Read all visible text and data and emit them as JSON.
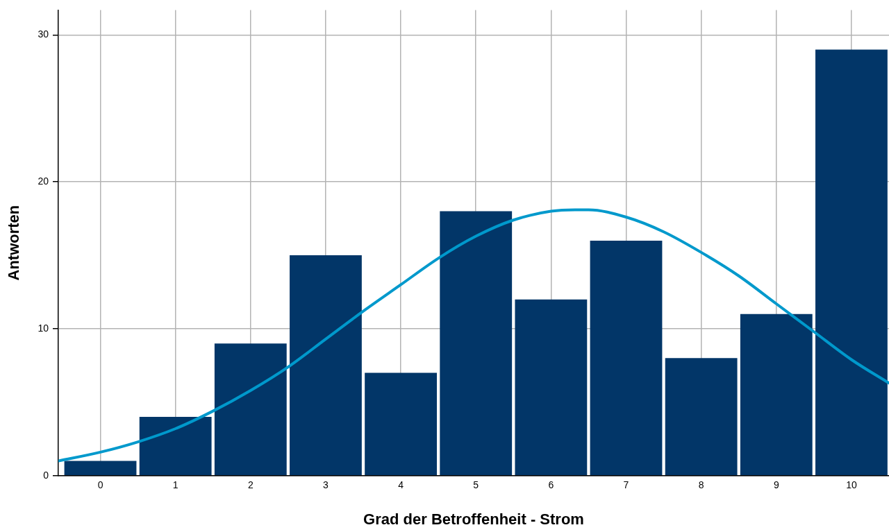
{
  "chart_data": {
    "type": "histogram",
    "xlabel": "Grad der Betroffenheit - Strom",
    "ylabel": "Antworten",
    "bins": [
      -0.5,
      0.5,
      1.5,
      2.5,
      3.5,
      4.5,
      5.5,
      6.5,
      7.5,
      8.5,
      9.5,
      10.5
    ],
    "values": [
      1,
      4,
      9,
      15,
      7,
      18,
      12,
      16,
      8,
      11,
      29
    ],
    "color": "#023668",
    "series": [
      {
        "type": "line",
        "color": "#0099cc",
        "x": [
          -0.56,
          0,
          0.5,
          1,
          1.5,
          2,
          2.5,
          3,
          3.5,
          4,
          4.5,
          5,
          5.5,
          6,
          6.32,
          6.5,
          7,
          7.5,
          8,
          8.5,
          9,
          9.5,
          10,
          10.5
        ],
        "values": [
          1.0,
          1.6,
          2.3,
          3.2,
          4.4,
          5.8,
          7.4,
          9.3,
          11.2,
          13.0,
          14.8,
          16.3,
          17.4,
          18.0,
          18.1,
          18.1,
          17.6,
          16.6,
          15.2,
          13.6,
          11.7,
          9.8,
          7.9,
          6.3
        ]
      }
    ],
    "xlim": [
      -0.56,
      10.5
    ],
    "xticks": [
      0,
      1,
      2,
      3,
      4,
      5,
      6,
      7,
      8,
      9,
      10
    ],
    "ylim": [
      0,
      31.7
    ],
    "yticks": [
      0,
      10,
      20,
      30
    ],
    "grid": true,
    "legend": false,
    "marker": "none",
    "line_style": "solid"
  }
}
